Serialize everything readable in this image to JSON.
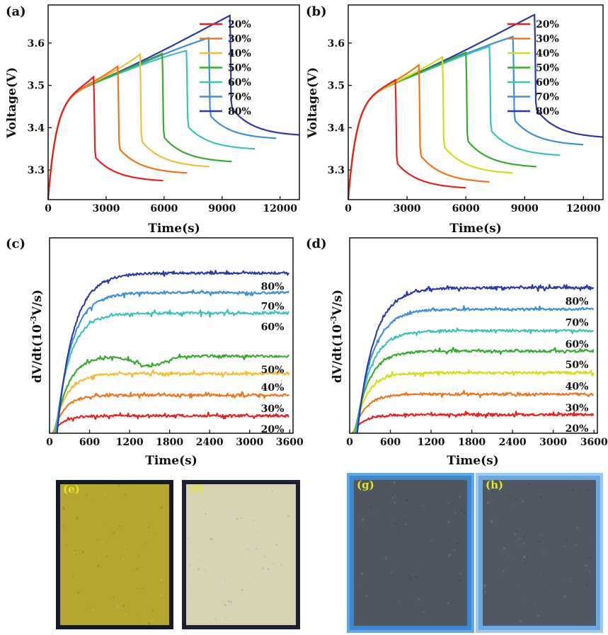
{
  "colors": {
    "20%": "#e8201e",
    "30%": "#f2741a",
    "40%": "#f2be3a",
    "50%": "#3aa932",
    "60%": "#3cc3b8",
    "70%": "#3d8fd8",
    "80%": "#2b3aa6"
  },
  "colors_d": {
    "20%": "#e8201e",
    "30%": "#f2741a",
    "40%": "#d7dc17",
    "50%": "#35ac2f",
    "60%": "#3cc3b8",
    "70%": "#3d8fd8",
    "80%": "#2b3aa6"
  },
  "chart_data": [
    {
      "id": "a",
      "type": "line",
      "label": "(a)",
      "xlabel": "Time(s)",
      "ylabel": "Voltage(V)",
      "xlim": [
        0,
        13000
      ],
      "ylim": [
        3.23,
        3.69
      ],
      "xticks": [
        0,
        3000,
        6000,
        9000,
        12000
      ],
      "yticks": [
        3.3,
        3.4,
        3.5,
        3.6
      ],
      "legend": [
        "20%",
        "30%",
        "40%",
        "50%",
        "60%",
        "70%",
        "80%"
      ],
      "legend_position": "top-right",
      "series": [
        {
          "name": "20%",
          "charge_end_t": 2350,
          "charge_end_v": 3.52,
          "rest_end_t": 5950,
          "rest_end_v": 3.275
        },
        {
          "name": "30%",
          "charge_end_t": 3600,
          "charge_end_v": 3.545,
          "rest_end_t": 7200,
          "rest_end_v": 3.293
        },
        {
          "name": "40%",
          "charge_end_t": 4750,
          "charge_end_v": 3.573,
          "rest_end_t": 8350,
          "rest_end_v": 3.308
        },
        {
          "name": "50%",
          "charge_end_t": 5900,
          "charge_end_v": 3.575,
          "rest_end_t": 9500,
          "rest_end_v": 3.32
        },
        {
          "name": "60%",
          "charge_end_t": 7150,
          "charge_end_v": 3.582,
          "rest_end_t": 10700,
          "rest_end_v": 3.35
        },
        {
          "name": "70%",
          "charge_end_t": 8300,
          "charge_end_v": 3.612,
          "rest_end_t": 11800,
          "rest_end_v": 3.375
        },
        {
          "name": "80%",
          "charge_end_t": 9400,
          "charge_end_v": 3.665,
          "rest_end_t": 13000,
          "rest_end_v": 3.383
        }
      ]
    },
    {
      "id": "b",
      "type": "line",
      "label": "(b)",
      "xlabel": "Time(s)",
      "ylabel": "Voltage(V)",
      "xlim": [
        0,
        13000
      ],
      "ylim": [
        3.23,
        3.69
      ],
      "xticks": [
        0,
        3000,
        6000,
        9000,
        12000
      ],
      "yticks": [
        3.3,
        3.4,
        3.5,
        3.6
      ],
      "legend": [
        "20%",
        "30%",
        "40%",
        "50%",
        "60%",
        "70%",
        "80%"
      ],
      "legend_position": "top-right",
      "series": [
        {
          "name": "20%",
          "charge_end_t": 2400,
          "charge_end_v": 3.513,
          "rest_end_t": 6000,
          "rest_end_v": 3.258
        },
        {
          "name": "30%",
          "charge_end_t": 3600,
          "charge_end_v": 3.548,
          "rest_end_t": 7200,
          "rest_end_v": 3.272
        },
        {
          "name": "40%",
          "charge_end_t": 4800,
          "charge_end_v": 3.567,
          "rest_end_t": 8400,
          "rest_end_v": 3.293
        },
        {
          "name": "50%",
          "charge_end_t": 6000,
          "charge_end_v": 3.578,
          "rest_end_t": 9600,
          "rest_end_v": 3.308
        },
        {
          "name": "60%",
          "charge_end_t": 7200,
          "charge_end_v": 3.592,
          "rest_end_t": 10800,
          "rest_end_v": 3.335
        },
        {
          "name": "70%",
          "charge_end_t": 8400,
          "charge_end_v": 3.615,
          "rest_end_t": 12000,
          "rest_end_v": 3.36
        },
        {
          "name": "80%",
          "charge_end_t": 9500,
          "charge_end_v": 3.667,
          "rest_end_t": 13000,
          "rest_end_v": 3.378
        }
      ]
    },
    {
      "id": "c",
      "type": "line",
      "label": "(c)",
      "xlabel": "Time(s)",
      "ylabel": "dV/dt(10^-3V/s)",
      "ylabel_main": "dV/dt(10",
      "ylabel_sup": "-3",
      "ylabel_end": "V/s)",
      "xlim": [
        0,
        3650
      ],
      "ylim": [
        0,
        1
      ],
      "xticks": [
        0,
        600,
        1200,
        1800,
        2400,
        3000,
        3600
      ],
      "yticks_shown": false,
      "series_labels": [
        "80%",
        "70%",
        "60%",
        "50%",
        "40%",
        "30%",
        "20%"
      ],
      "series": [
        {
          "name": "20%",
          "plateau": 0.09
        },
        {
          "name": "30%",
          "plateau": 0.195
        },
        {
          "name": "40%",
          "plateau": 0.305
        },
        {
          "name": "50%",
          "plateau": 0.395
        },
        {
          "name": "60%",
          "plateau": 0.615
        },
        {
          "name": "70%",
          "plateau": 0.72
        },
        {
          "name": "80%",
          "plateau": 0.82
        }
      ]
    },
    {
      "id": "d",
      "type": "line",
      "label": "(d)",
      "xlabel": "Time(s)",
      "ylabel": "dV/dt(10^-3V/s)",
      "ylabel_main": "dV/dt(10",
      "ylabel_sup": "-3",
      "ylabel_end": "V/s)",
      "xlim": [
        0,
        3650
      ],
      "ylim": [
        0,
        1
      ],
      "xticks": [
        0,
        600,
        1200,
        1800,
        2400,
        3000,
        3600
      ],
      "yticks_shown": false,
      "series_labels": [
        "80%",
        "70%",
        "60%",
        "50%",
        "40%",
        "30%",
        "20%"
      ],
      "series": [
        {
          "name": "20%",
          "plateau": 0.095
        },
        {
          "name": "30%",
          "plateau": 0.2
        },
        {
          "name": "40%",
          "plateau": 0.31
        },
        {
          "name": "50%",
          "plateau": 0.42
        },
        {
          "name": "60%",
          "plateau": 0.525
        },
        {
          "name": "70%",
          "plateau": 0.635
        },
        {
          "name": "80%",
          "plateau": 0.745
        }
      ]
    }
  ],
  "photos": [
    {
      "label": "(e)",
      "fill": "#b6a631",
      "frame": "#151a2a",
      "bg": "#ffffff"
    },
    {
      "label": "(f)",
      "fill": "#d8d2b4",
      "frame": "#1c2030",
      "bg": "#ffffff"
    },
    {
      "label": "(g)",
      "fill": "#4f5660",
      "frame": "#3e88cc",
      "bg": "#5ea8e8"
    },
    {
      "label": "(h)",
      "fill": "#4f5863",
      "frame": "#6aa8e0",
      "bg": "#9cc7ee"
    }
  ]
}
